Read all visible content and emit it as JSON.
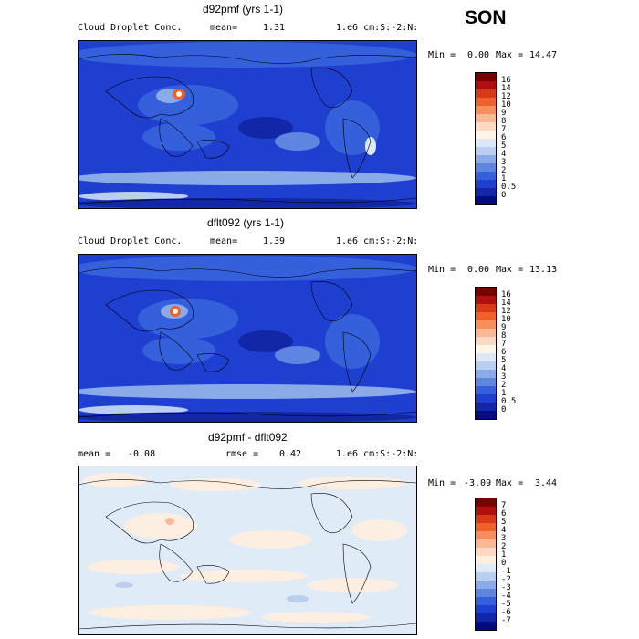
{
  "season": "SON",
  "panels": [
    {
      "title": "d92pmf (yrs 1-1)",
      "left_label": "Cloud Droplet Conc.",
      "mean_label": "mean=",
      "mean_value": "1.31",
      "units": "1.e6 cm:S:-2:N:",
      "min_label": "Min =",
      "min_value": "0.00",
      "max_label": "Max =",
      "max_value": "14.47",
      "scale_labels": [
        "16",
        "14",
        "12",
        "10",
        "9",
        "8",
        "7",
        "6",
        "5",
        "4",
        "3",
        "2",
        "1",
        "0.5",
        "0"
      ]
    },
    {
      "title": "dflt092 (yrs 1-1)",
      "left_label": "Cloud Droplet Conc.",
      "mean_label": "mean=",
      "mean_value": "1.39",
      "units": "1.e6 cm:S:-2:N:",
      "min_label": "Min =",
      "min_value": "0.00",
      "max_label": "Max =",
      "max_value": "13.13",
      "scale_labels": [
        "16",
        "14",
        "12",
        "10",
        "9",
        "8",
        "7",
        "6",
        "5",
        "4",
        "3",
        "2",
        "1",
        "0.5",
        "0"
      ]
    },
    {
      "title": "d92pmf - dflt092",
      "left_label": "mean =",
      "left_value": "-0.08",
      "mid_label": "rmse =",
      "mid_value": "0.42",
      "units": "1.e6 cm:S:-2:N:",
      "min_label": "Min =",
      "min_value": "-3.09",
      "max_label": "Max =",
      "max_value": "3.44",
      "scale_labels": [
        "7",
        "6",
        "5",
        "4",
        "3",
        "2",
        "1",
        "0",
        "-1",
        "-2",
        "-3",
        "-4",
        "-5",
        "-6",
        "-7"
      ]
    }
  ],
  "colors": {
    "abs_scale": [
      "#7a0000",
      "#b01010",
      "#d83a16",
      "#f0602a",
      "#f78f5c",
      "#fbb896",
      "#fcd9c2",
      "#fff4e8",
      "#dce8f8",
      "#b9cef0",
      "#8aaae8",
      "#5e86e0",
      "#3460dc",
      "#1e3fd0",
      "#1226a8",
      "#060a80"
    ],
    "diff_scale": [
      "#7a0000",
      "#b01010",
      "#d83a16",
      "#f0602a",
      "#f78f5c",
      "#fbb896",
      "#fcd9c2",
      "#fdeee2",
      "#e0ebf8",
      "#b9cef0",
      "#8aaae8",
      "#5e86e0",
      "#3460dc",
      "#1e3fd0",
      "#1226a8",
      "#060a80"
    ]
  }
}
